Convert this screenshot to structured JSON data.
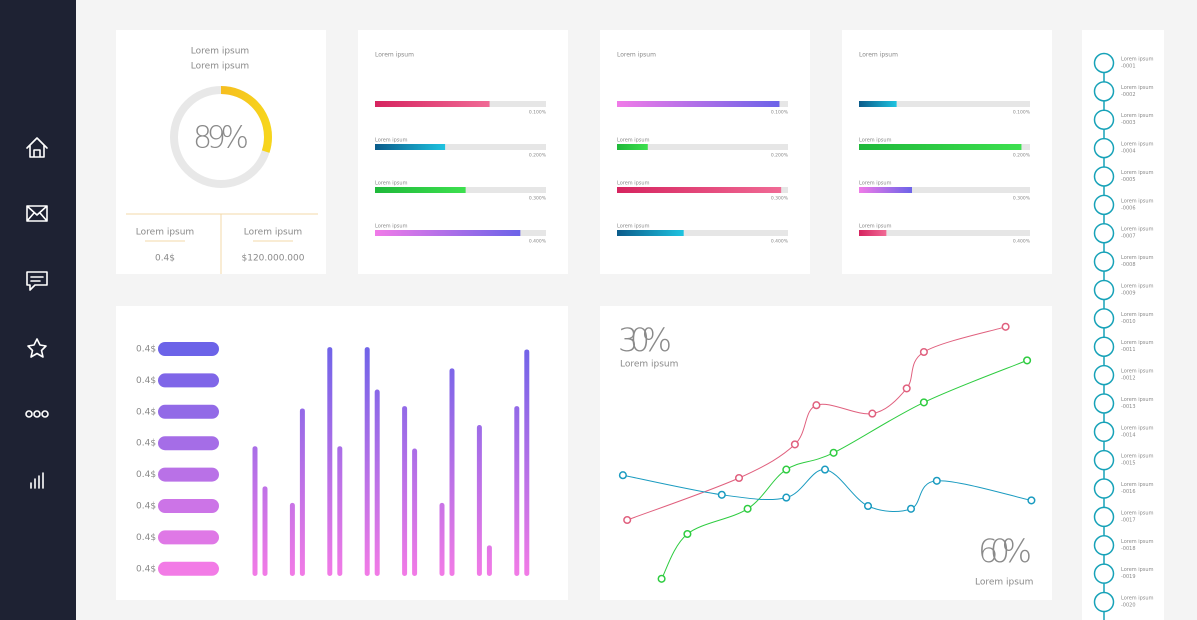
{
  "gauge_card": {
    "titles": [
      "Lorem ipsum",
      "Lorem ipsum"
    ],
    "gauge_label": "89%",
    "gauge_arc": 30,
    "gauge_colors": [
      "#f5a623",
      "#f7d51c"
    ],
    "stats": [
      {
        "label": "Lorem ipsum",
        "value": "0.4$"
      },
      {
        "label": "Lorem ipsum",
        "value": "$120.000.000"
      }
    ]
  },
  "progress_cards": [
    {
      "title": "Lorem ipsum",
      "bars": [
        {
          "value": 67,
          "caption": "0.100%",
          "colors": [
            "#d6245f",
            "#f06a95"
          ]
        },
        {
          "label": "Lorem ipsum",
          "value": 41,
          "caption": "0.200%",
          "colors": [
            "#0b5b8a",
            "#1ec3e0"
          ]
        },
        {
          "label": "Lorem ipsum",
          "value": 53,
          "caption": "0.300%",
          "colors": [
            "#1fb83a",
            "#3de04f"
          ]
        },
        {
          "label": "Lorem ipsum",
          "value": 85,
          "caption": "0.400%",
          "colors": [
            "#f07be8",
            "#6c63e8"
          ]
        }
      ]
    },
    {
      "title": "Lorem ipsum",
      "bars": [
        {
          "value": 95,
          "caption": "0.100%",
          "colors": [
            "#f07be8",
            "#6c63e8"
          ]
        },
        {
          "label": "Lorem ipsum",
          "value": 18,
          "caption": "0.200%",
          "colors": [
            "#1fb83a",
            "#3de04f"
          ]
        },
        {
          "label": "Lorem ipsum",
          "value": 96,
          "caption": "0.300%",
          "colors": [
            "#d6245f",
            "#f06a95"
          ]
        },
        {
          "label": "Lorem ipsum",
          "value": 39,
          "caption": "0.400%",
          "colors": [
            "#0b5b8a",
            "#1ec3e0"
          ]
        }
      ]
    },
    {
      "title": "Lorem ipsum",
      "bars": [
        {
          "value": 22,
          "caption": "0.100%",
          "colors": [
            "#0b5b8a",
            "#1ec3e0"
          ]
        },
        {
          "label": "Lorem ipsum",
          "value": 95,
          "caption": "0.200%",
          "colors": [
            "#1fb83a",
            "#3de04f"
          ]
        },
        {
          "label": "Lorem ipsum",
          "value": 31,
          "caption": "0.300%",
          "colors": [
            "#f07be8",
            "#6c63e8"
          ]
        },
        {
          "label": "Lorem ipsum",
          "value": 16,
          "caption": "0.400%",
          "colors": [
            "#d6245f",
            "#f06a95"
          ]
        }
      ]
    }
  ],
  "chart_data": [
    {
      "type": "bar",
      "side_labels": [
        "0.4$",
        "0.4$",
        "0.4$",
        "0.4$",
        "0.4$",
        "0.4$",
        "0.4$",
        "0.4$"
      ],
      "categories": [
        null,
        null,
        null,
        null,
        null,
        null,
        null,
        null
      ],
      "series": [
        {
          "values": [
            55,
            31,
            97,
            97,
            72,
            31,
            64,
            72
          ]
        },
        {
          "values": [
            38,
            71,
            55,
            79,
            54,
            88,
            13,
            96
          ]
        }
      ],
      "ylim": [
        0,
        100
      ],
      "colors": [
        "#6c63e8",
        "#f27be6"
      ]
    },
    {
      "type": "line",
      "xlim": [
        0,
        100
      ],
      "ylim": [
        0,
        100
      ],
      "callouts": [
        {
          "value": "30%",
          "label": "Lorem ipsum"
        },
        {
          "value": "60%",
          "label": "Lorem ipsum"
        }
      ],
      "series": [
        {
          "color": "#e0607e",
          "x": [
            4,
            30,
            43,
            48,
            61,
            69,
            73,
            92
          ],
          "values": [
            25,
            40,
            52,
            66,
            63,
            72,
            85,
            94
          ]
        },
        {
          "color": "#2ecc40",
          "x": [
            12,
            18,
            32,
            41,
            52,
            73,
            97
          ],
          "values": [
            4,
            20,
            29,
            43,
            49,
            67,
            82
          ]
        },
        {
          "color": "#1a9bc0",
          "x": [
            3,
            26,
            41,
            50,
            60,
            70,
            76,
            98
          ],
          "values": [
            41,
            34,
            33,
            43,
            30,
            29,
            39,
            32
          ]
        }
      ]
    }
  ],
  "timeline": [
    {
      "label": "Lorem ipsum",
      "code": "-0001"
    },
    {
      "label": "Lorem ipsum",
      "code": "-0002"
    },
    {
      "label": "Lorem ipsum",
      "code": "-0003"
    },
    {
      "label": "Lorem ipsum",
      "code": "-0004"
    },
    {
      "label": "Lorem ipsum",
      "code": "-0005"
    },
    {
      "label": "Lorem ipsum",
      "code": "-0006"
    },
    {
      "label": "Lorem ipsum",
      "code": "-0007"
    },
    {
      "label": "Lorem ipsum",
      "code": "-0008"
    },
    {
      "label": "Lorem ipsum",
      "code": "-0009"
    },
    {
      "label": "Lorem ipsum",
      "code": "-0010"
    },
    {
      "label": "Lorem ipsum",
      "code": "-0011"
    },
    {
      "label": "Lorem ipsum",
      "code": "-0012"
    },
    {
      "label": "Lorem ipsum",
      "code": "-0013"
    },
    {
      "label": "Lorem ipsum",
      "code": "-0014"
    },
    {
      "label": "Lorem ipsum",
      "code": "-0015"
    },
    {
      "label": "Lorem ipsum",
      "code": "-0016"
    },
    {
      "label": "Lorem ipsum",
      "code": "-0017"
    },
    {
      "label": "Lorem ipsum",
      "code": "-0018"
    },
    {
      "label": "Lorem ipsum",
      "code": "-0019"
    },
    {
      "label": "Lorem ipsum",
      "code": "-0020"
    }
  ]
}
